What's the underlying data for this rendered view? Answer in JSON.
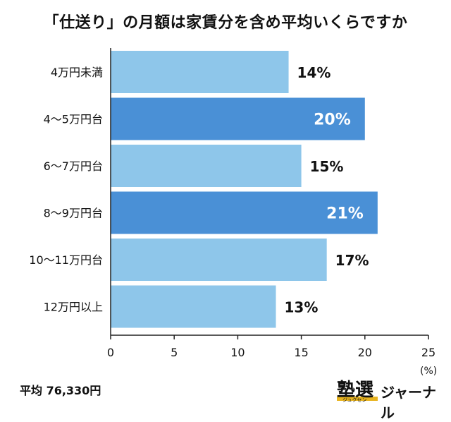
{
  "title": "「仕送り」の月額は家賃分を含め平均いくらですか",
  "footer": {
    "average": "平均 76,330円",
    "unit": "(%)"
  },
  "logo": {
    "main": "塾選",
    "sub": "ジュクセン",
    "text": "ジャーナル"
  },
  "colors": {
    "light": "#8ec6ea",
    "dark": "#4a90d6",
    "label_dark_text": "#ffffff",
    "label_light_text": "#111111"
  },
  "chart_data": {
    "type": "bar",
    "orientation": "horizontal",
    "categories": [
      "4万円未満",
      "4〜5万円台",
      "6〜7万円台",
      "8〜9万円台",
      "10〜11万円台",
      "12万円以上"
    ],
    "values": [
      14,
      20,
      15,
      21,
      17,
      13
    ],
    "value_labels": [
      "14%",
      "20%",
      "15%",
      "21%",
      "17%",
      "13%"
    ],
    "highlighted": [
      false,
      true,
      false,
      true,
      false,
      false
    ],
    "xlim": [
      0,
      25
    ],
    "xticks": [
      0,
      5,
      10,
      15,
      20,
      25
    ],
    "xlabel": "",
    "ylabel": "",
    "grid": false
  }
}
